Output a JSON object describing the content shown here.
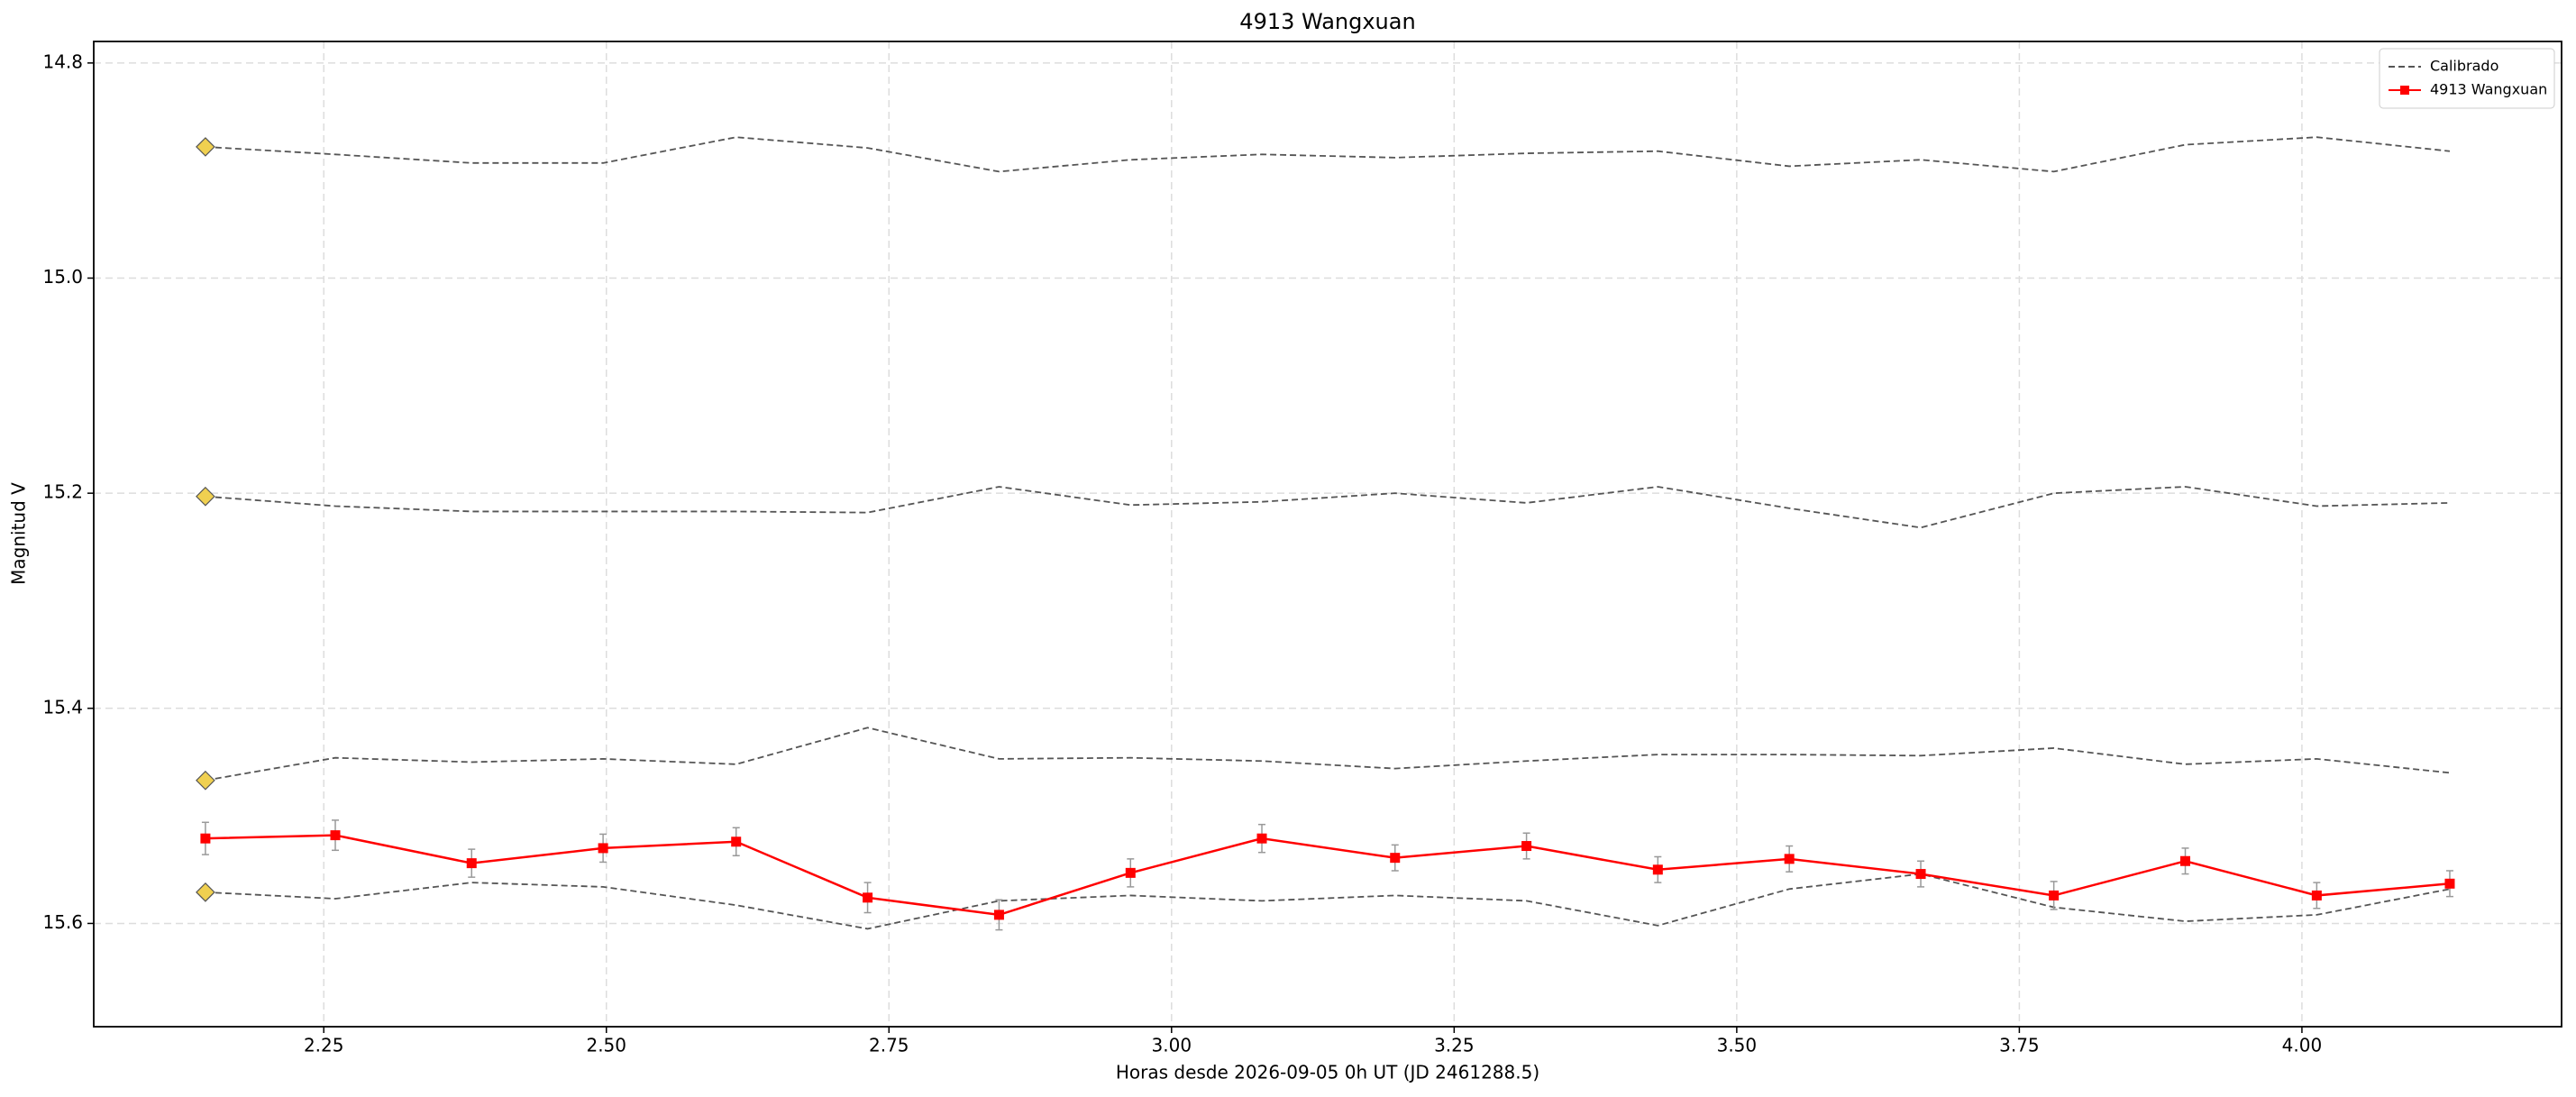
{
  "chart_data": {
    "type": "line",
    "title": "4913 Wangxuan",
    "xlabel": "Horas desde 2026-09-05 0h UT (JD 2461288.5)",
    "ylabel": "Magnitud V",
    "x": [
      2.1453,
      2.2602,
      2.3808,
      2.4971,
      2.6148,
      2.7311,
      2.8474,
      2.9637,
      3.0799,
      3.1977,
      3.314,
      3.4302,
      3.5465,
      3.6628,
      3.7805,
      3.8968,
      4.0131,
      4.1308
    ],
    "series": [
      {
        "name": "Calibrado",
        "color": "#555555",
        "dashed": true,
        "first_marker_color": "#f0d050",
        "values": [
          14.878,
          14.885,
          14.893,
          14.893,
          14.869,
          14.879,
          14.901,
          14.89,
          14.885,
          14.888,
          14.884,
          14.882,
          14.896,
          14.89,
          14.901,
          14.876,
          14.869,
          14.882
        ]
      },
      {
        "name": "Calibrado",
        "color": "#555555",
        "dashed": true,
        "first_marker_color": "#f0d050",
        "values": [
          15.203,
          15.212,
          15.217,
          15.217,
          15.217,
          15.218,
          15.194,
          15.211,
          15.208,
          15.2,
          15.209,
          15.194,
          15.214,
          15.232,
          15.2,
          15.194,
          15.212,
          15.209
        ]
      },
      {
        "name": "Calibrado",
        "color": "#555555",
        "dashed": true,
        "first_marker_color": "#f0d050",
        "values": [
          15.467,
          15.446,
          15.45,
          15.447,
          15.452,
          15.418,
          15.447,
          15.446,
          15.449,
          15.456,
          15.449,
          15.443,
          15.443,
          15.444,
          15.437,
          15.452,
          15.447,
          15.46
        ]
      },
      {
        "name": "Calibrado",
        "color": "#555555",
        "dashed": true,
        "first_marker_color": "#f0d050",
        "values": [
          15.571,
          15.577,
          15.562,
          15.566,
          15.583,
          15.605,
          15.579,
          15.574,
          15.579,
          15.574,
          15.579,
          15.602,
          15.568,
          15.554,
          15.585,
          15.598,
          15.592,
          15.568
        ]
      },
      {
        "name": "4913 Wangxuan",
        "color": "#ff0000",
        "dashed": false,
        "marker": "square",
        "errorbar_color": "#999999",
        "values": [
          15.521,
          15.518,
          15.544,
          15.53,
          15.524,
          15.576,
          15.592,
          15.553,
          15.521,
          15.539,
          15.528,
          15.55,
          15.54,
          15.554,
          15.574,
          15.542,
          15.574,
          15.563
        ],
        "errors": [
          0.015,
          0.014,
          0.013,
          0.013,
          0.013,
          0.014,
          0.014,
          0.013,
          0.013,
          0.012,
          0.012,
          0.012,
          0.012,
          0.012,
          0.013,
          0.012,
          0.012,
          0.012
        ]
      }
    ],
    "xlim": [
      2.0465,
      4.2297
    ],
    "xticks": [
      2.25,
      {
        "value": 2.5,
        "label": "2.50"
      },
      2.75,
      {
        "value": 3.0,
        "label": "3.00"
      },
      3.25,
      {
        "value": 3.5,
        "label": "3.50"
      },
      3.75,
      {
        "value": 4.0,
        "label": "4.00"
      }
    ],
    "ylim": [
      14.78,
      15.696
    ],
    "y_inverted": true,
    "yticks": [
      14.8,
      {
        "value": 15.0,
        "label": "15.0"
      },
      15.2,
      15.4,
      15.6
    ],
    "grid": true,
    "legend": "upper right"
  }
}
